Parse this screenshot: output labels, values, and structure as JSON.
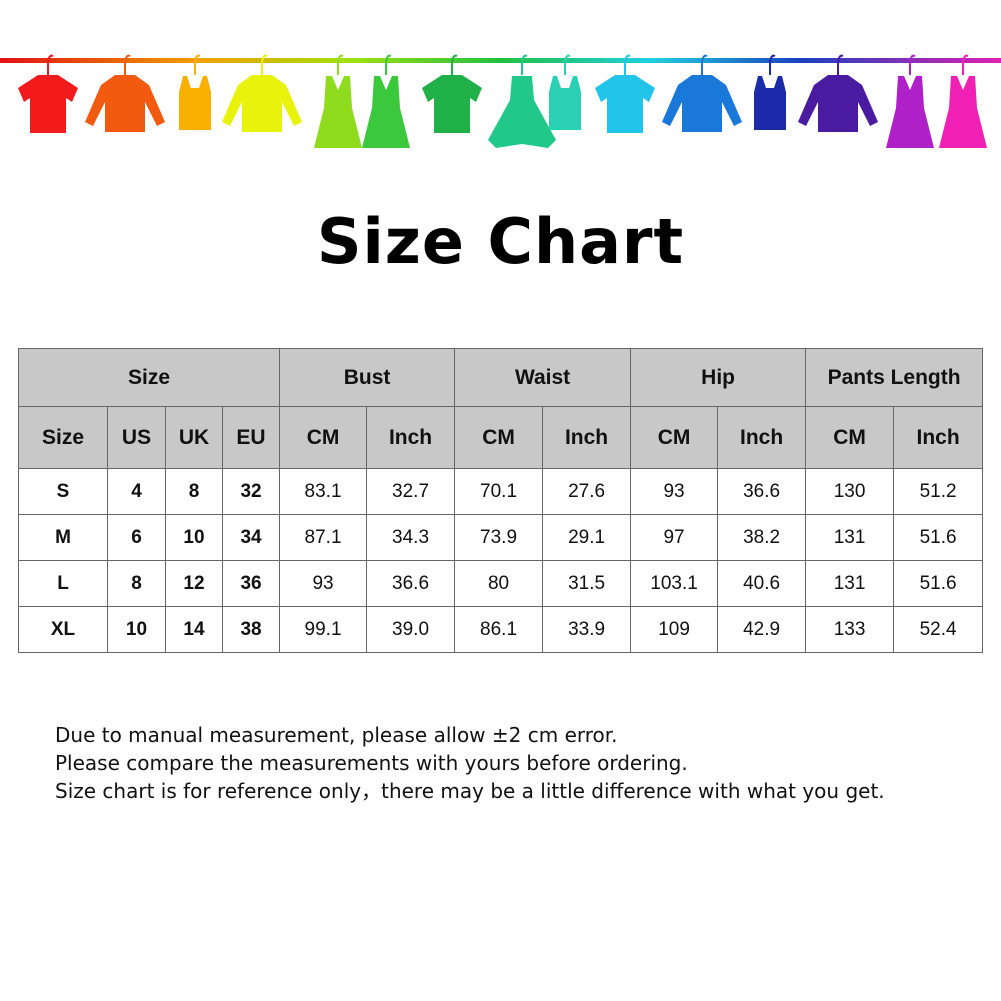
{
  "title": "Size Chart",
  "garment_colors": [
    "#f21a1a",
    "#f25a10",
    "#f9b000",
    "#e9f20a",
    "#8fdc1e",
    "#3cc83c",
    "#1fb048",
    "#22c88a",
    "#2ad0b4",
    "#22c4ea",
    "#1a78d8",
    "#1a2aa8",
    "#4a1aa0",
    "#b020c8",
    "#f020b4"
  ],
  "header_groups": [
    "Size",
    "Bust",
    "Waist",
    "Hip",
    "Pants Length"
  ],
  "sub_headers": [
    "Size",
    "US",
    "UK",
    "EU",
    "CM",
    "Inch",
    "CM",
    "Inch",
    "CM",
    "Inch",
    "CM",
    "Inch"
  ],
  "rows": [
    [
      "S",
      "4",
      "8",
      "32",
      "83.1",
      "32.7",
      "70.1",
      "27.6",
      "93",
      "36.6",
      "130",
      "51.2"
    ],
    [
      "M",
      "6",
      "10",
      "34",
      "87.1",
      "34.3",
      "73.9",
      "29.1",
      "97",
      "38.2",
      "131",
      "51.6"
    ],
    [
      "L",
      "8",
      "12",
      "36",
      "93",
      "36.6",
      "80",
      "31.5",
      "103.1",
      "40.6",
      "131",
      "51.6"
    ],
    [
      "XL",
      "10",
      "14",
      "38",
      "99.1",
      "39.0",
      "86.1",
      "33.9",
      "109",
      "42.9",
      "133",
      "52.4"
    ]
  ],
  "notes": [
    "Due to manual measurement, please allow ±2 cm error.",
    "Please compare the measurements with yours before ordering.",
    "Size chart is for reference only，there may be a little difference with what you get."
  ]
}
